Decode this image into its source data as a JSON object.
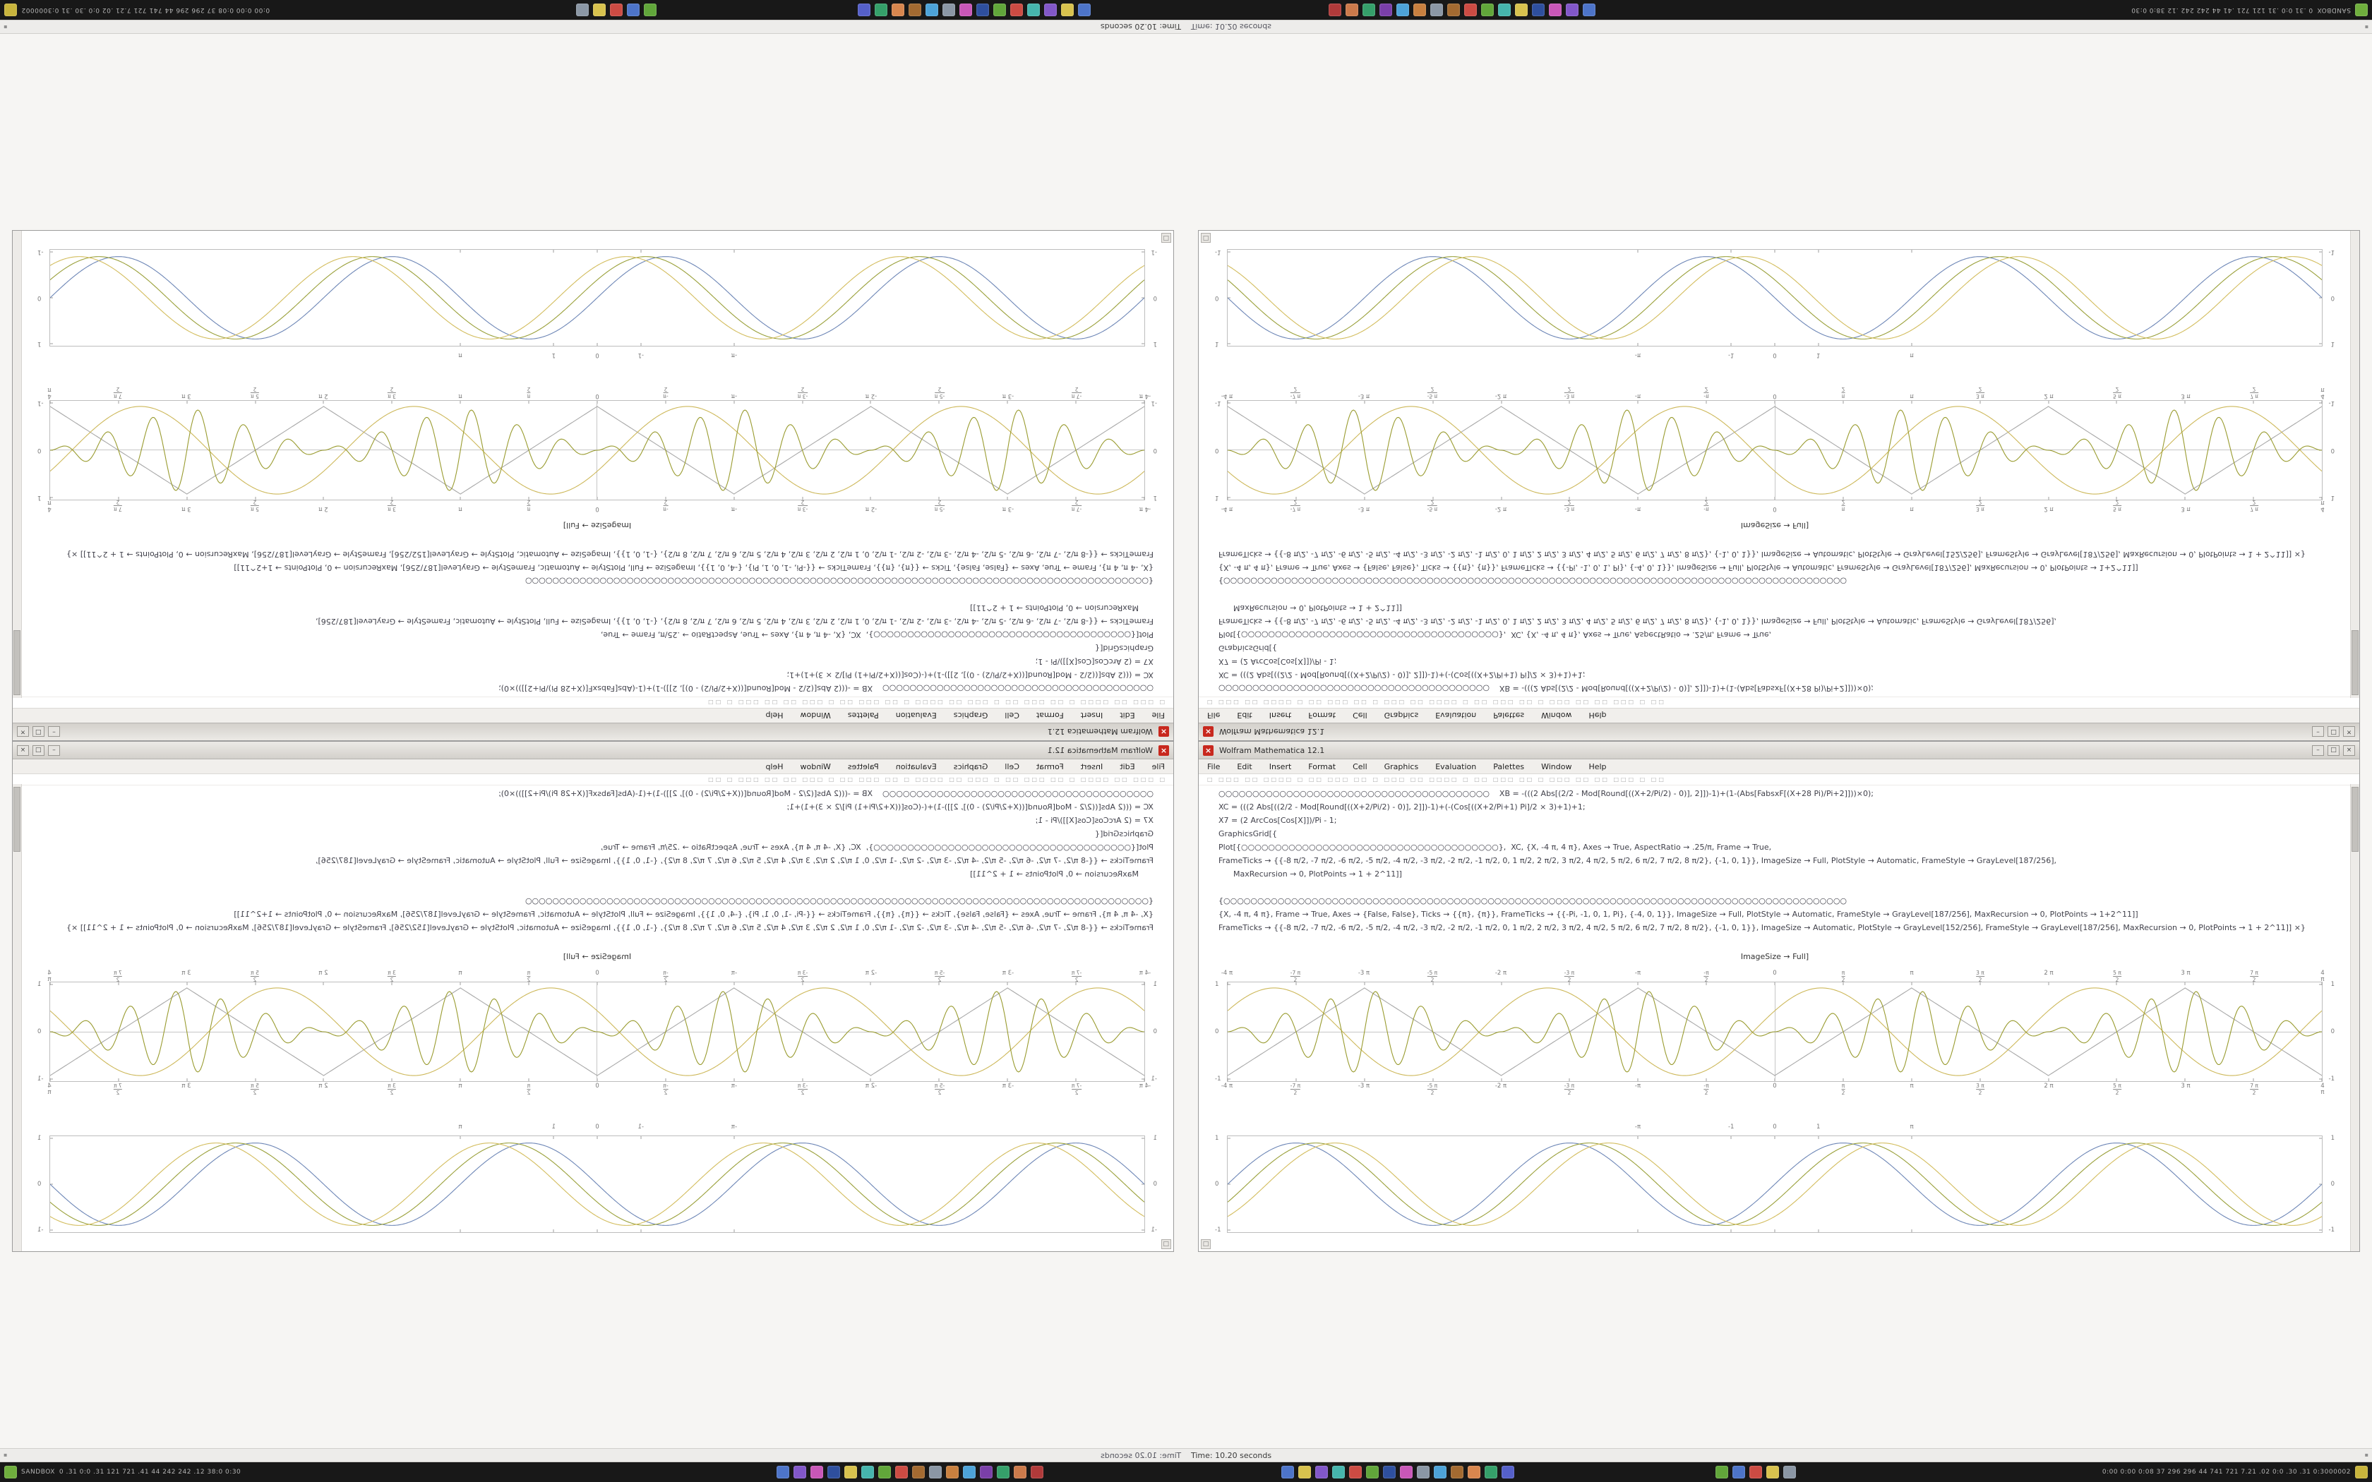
{
  "screen": {
    "background": "#f6f5f3"
  },
  "status_strip": {
    "text": "Time: 10.20 seconds",
    "edge_glyph": "▪"
  },
  "taskbar": {
    "background": "#181818",
    "corner_label": "SANDBOX",
    "corner_stats": "0 .31 0:0 .31 121 721 .41 44 242 242 .12 38:0 0:30",
    "right_stats": "0:00 0:00 0:08 37 296 296 44 741 721 7.21 .02 0:0 .30 .31 0:3000002",
    "corner_icon_color": "#6fae3d",
    "right_corner_icon_color": "#c8b43c",
    "cluster1_icons": [
      "#4d74c9",
      "#8257c9",
      "#c957b8",
      "#2e4f9e",
      "#d8c24e",
      "#46b5ad",
      "#61a63a",
      "#cc4b43",
      "#a36a31",
      "#8b97a5",
      "#c9803f",
      "#4da3d8",
      "#7a3fa8",
      "#35a06a",
      "#cc7a4b",
      "#b03a3a"
    ],
    "cluster2_icons": [
      "#4d74c9",
      "#d8c24e",
      "#8257c9",
      "#46b5ad",
      "#cc4b43",
      "#61a63a",
      "#2e4f9e",
      "#c957b8",
      "#8b97a5",
      "#4da3d8",
      "#a36a31",
      "#d8864e",
      "#35a06a",
      "#5560c9"
    ],
    "cluster3_icons": [
      "#61a63a",
      "#4d74c9",
      "#cc4b43",
      "#d8c24e",
      "#8b97a5"
    ]
  },
  "window": {
    "title": "Wolfram Mathematica 12.1",
    "abort_glyph": "×",
    "buttons": [
      "–",
      "□",
      "×"
    ],
    "menu": [
      "File",
      "Edit",
      "Insert",
      "Format",
      "Cell",
      "Graphics",
      "Evaluation",
      "Palettes",
      "Window",
      "Help"
    ],
    "toolbar_glyphs": "□ □□□ □□ □□□□ □ □□ □□□ □□ □ □□□ □□ □□□□ □ □□ □□□ □□ □ □□□ □□ □□ □□□ □ □□",
    "code_lines": [
      "○○○○○○○○○○○○○○○○○○○○○○○○○○○○○○○○○○○○○○○○    XB = -(((2 Abs[(2/2 - Mod[Round[((X+2/Pi/2) - 0)], 2]])-1)+(1-(Abs[FabsxF[(X+28 Pi)/Pi+2]]))×0);",
      "XC = (((2 Abs[((2/2 - Mod[Round[((X+2/Pi/2) - 0)], 2]])-1)+(-(Cos[((X+2/Pi+1) Pi]/2 × 3)+1)+1;",
      "X7 = (2 ArcCos[Cos[X]])/Pi - 1;",
      "GraphicsGrid[{",
      "Plot[{○○○○○○○○○○○○○○○○○○○○○○○○○○○○○○○○○○○○○○},  XC, {X, -4 π, 4 π}, Axes → True, AspectRatio → .25/π, Frame → True,",
      "FrameTicks → {{-8 π/2, -7 π/2, -6 π/2, -5 π/2, -4 π/2, -3 π/2, -2 π/2, -1 π/2, 0, 1 π/2, 2 π/2, 3 π/2, 4 π/2, 5 π/2, 6 π/2, 7 π/2, 8 π/2}, {-1, 0, 1}}, ImageSize → Full, PlotStyle → Automatic, FrameStyle → GrayLevel[187/256],",
      "      MaxRecursion → 0, PlotPoints → 1 + 2^11]]",
      "",
      "{○○○○○○○○○○○○○○○○○○○○○○○○○○○○○○○○○○○○○○○○○○○○○○○○○○○○○○○○○○○○○○○○○○○○○○○○○○○○○○○○○○○○○○○○○○○○",
      "{X, -4 π, 4 π}, Frame → True, Axes → {False, False}, Ticks → {{π}, {π}}, FrameTicks → {{-Pi, -1, 0, 1, Pi}, {-4, 0, 1}}, ImageSize → Full, PlotStyle → Automatic, FrameStyle → GrayLevel[187/256], MaxRecursion → 0, PlotPoints → 1+2^11]]",
      "FrameTicks → {{-8 π/2, -7 π/2, -6 π/2, -5 π/2, -4 π/2, -3 π/2, -2 π/2, -1 π/2, 0, 1 π/2, 2 π/2, 3 π/2, 4 π/2, 5 π/2, 6 π/2, 7 π/2, 8 π/2}, {-1, 0, 1}}, ImageSize → Automatic, PlotStyle → GrayLevel[152/256], FrameStyle → GrayLevel[187/256], MaxRecursion → 0, PlotPoints → 1 + 2^11]] ×}"
    ],
    "out_label": "ImageSize → Full]",
    "corner_widget_glyph": "□"
  },
  "chart_data": [
    {
      "type": "line",
      "x_range": [
        -12.566,
        12.566
      ],
      "y_range": [
        -1.05,
        1.05
      ],
      "frame": true,
      "axes": true,
      "tick_label_sides": "both",
      "x_ticks": [
        {
          "u": -12.566,
          "label": "-4 π"
        },
        {
          "u": -10.996,
          "frac": [
            "-7 π",
            "2"
          ]
        },
        {
          "u": -9.425,
          "label": "-3 π"
        },
        {
          "u": -7.854,
          "frac": [
            "-5 π",
            "2"
          ]
        },
        {
          "u": -6.283,
          "label": "-2 π"
        },
        {
          "u": -4.712,
          "frac": [
            "-3 π",
            "2"
          ]
        },
        {
          "u": -3.1416,
          "label": "-π"
        },
        {
          "u": -1.5708,
          "frac": [
            "-π",
            "2"
          ]
        },
        {
          "u": 0,
          "label": "0"
        },
        {
          "u": 1.5708,
          "frac": [
            "π",
            "2"
          ]
        },
        {
          "u": 3.1416,
          "label": "π"
        },
        {
          "u": 4.712,
          "frac": [
            "3 π",
            "2"
          ]
        },
        {
          "u": 6.283,
          "label": "2 π"
        },
        {
          "u": 7.854,
          "frac": [
            "5 π",
            "2"
          ]
        },
        {
          "u": 9.425,
          "label": "3 π"
        },
        {
          "u": 10.996,
          "frac": [
            "7 π",
            "2"
          ]
        },
        {
          "u": 12.566,
          "label": "4 π"
        }
      ],
      "y_ticks": [
        {
          "v": -1,
          "label": "-1"
        },
        {
          "v": 0,
          "label": "0"
        },
        {
          "v": 1,
          "label": "1"
        }
      ],
      "series": [
        {
          "name": "triangle-wave",
          "kind": "triangle",
          "freq": 1,
          "phase": 0,
          "amp": 0.95,
          "color": "#a8a8a8"
        },
        {
          "name": "sine-gold",
          "kind": "sin",
          "freq": 1,
          "phase": 0.5,
          "amp": 0.95,
          "color": "#cdb85a"
        },
        {
          "name": "burst-olive",
          "kind": "modulated",
          "carrier": 6,
          "env": 1,
          "phase": 0,
          "amp": 0.95,
          "color": "#999b2f"
        }
      ]
    },
    {
      "type": "line",
      "x_range": [
        -12.566,
        12.566
      ],
      "y_range": [
        -1.05,
        1.05
      ],
      "frame": true,
      "axes": false,
      "tick_label_sides": "top",
      "x_ticks": [
        {
          "u": -3.1416,
          "label": "-π"
        },
        {
          "u": -1,
          "label": "-1"
        },
        {
          "u": 0,
          "label": "0"
        },
        {
          "u": 1,
          "label": "1"
        },
        {
          "u": 3.1416,
          "label": "π"
        }
      ],
      "y_ticks": [
        {
          "v": -1,
          "label": "-1"
        },
        {
          "v": 0,
          "label": "0"
        },
        {
          "v": 1,
          "label": "1"
        }
      ],
      "series": [
        {
          "name": "sine-blue",
          "kind": "sin",
          "freq": 1,
          "phase": 0,
          "amp": 0.92,
          "color": "#6d86b6"
        },
        {
          "name": "sine-olive",
          "kind": "sin",
          "freq": 1,
          "phase": -0.45,
          "amp": 0.92,
          "color": "#9aa03a"
        },
        {
          "name": "sine-gold",
          "kind": "sin",
          "freq": 1,
          "phase": -0.9,
          "amp": 0.92,
          "color": "#d3bd5e"
        }
      ]
    }
  ]
}
